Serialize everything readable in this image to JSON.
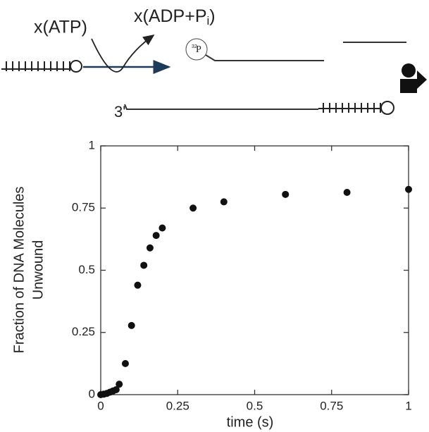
{
  "chart_data": {
    "type": "scatter",
    "xlabel": "time (s)",
    "ylabel": [
      "Fraction of DNA Molecules",
      "Unwound"
    ],
    "x": [
      0,
      0.01,
      0.02,
      0.03,
      0.04,
      0.05,
      0.06,
      0.08,
      0.1,
      0.12,
      0.14,
      0.16,
      0.18,
      0.2,
      0.3,
      0.4,
      0.6,
      0.8,
      1
    ],
    "values": [
      0,
      0.002,
      0.005,
      0.01,
      0.015,
      0.02,
      0.042,
      0.125,
      0.278,
      0.44,
      0.52,
      0.59,
      0.64,
      0.67,
      0.75,
      0.775,
      0.805,
      0.813,
      0.825
    ],
    "color": "#111111",
    "xlim": [
      0,
      1
    ],
    "xticks": [
      0,
      0.25,
      0.5,
      0.75,
      1
    ],
    "ylim": [
      0,
      1
    ],
    "yticks": [
      0,
      0.25,
      0.5,
      0.75,
      1
    ]
  },
  "diagram": {
    "atp": "x(ATP)",
    "adp": [
      "x(ADP+P",
      "i",
      ")"
    ],
    "label32": "32",
    "phosphorus": "P",
    "three_prime": "3'"
  }
}
